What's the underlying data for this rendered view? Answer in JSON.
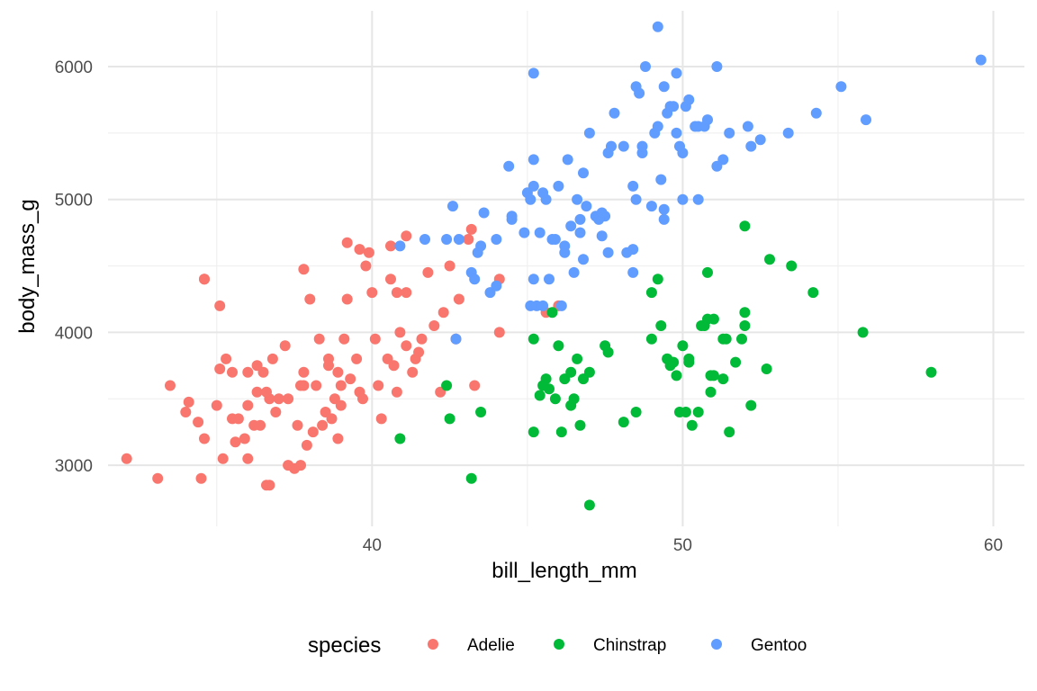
{
  "chart_data": {
    "type": "scatter",
    "xlabel": "bill_length_mm",
    "ylabel": "body_mass_g",
    "xlim": [
      31.5,
      61.0
    ],
    "ylim": [
      2540,
      6420
    ],
    "x_ticks": [
      40,
      50,
      60
    ],
    "y_ticks": [
      3000,
      4000,
      5000,
      6000
    ],
    "x_tick_labels": [
      "40",
      "50",
      "60"
    ],
    "y_tick_labels": [
      "3000",
      "4000",
      "5000",
      "6000"
    ],
    "grid": true,
    "legend": {
      "title": "species",
      "position": "bottom"
    },
    "series": [
      {
        "name": "Adelie",
        "color": "#F8766D",
        "points": [
          [
            32.1,
            3050
          ],
          [
            33.1,
            2900
          ],
          [
            33.5,
            3600
          ],
          [
            34.0,
            3400
          ],
          [
            34.1,
            3475
          ],
          [
            34.4,
            3325
          ],
          [
            34.5,
            2900
          ],
          [
            34.6,
            3200
          ],
          [
            34.6,
            4400
          ],
          [
            35.0,
            3450
          ],
          [
            35.1,
            3725
          ],
          [
            35.2,
            3050
          ],
          [
            35.3,
            3800
          ],
          [
            35.5,
            3700
          ],
          [
            35.5,
            3350
          ],
          [
            35.6,
            3175
          ],
          [
            35.7,
            3350
          ],
          [
            35.9,
            3200
          ],
          [
            36.0,
            3450
          ],
          [
            36.0,
            3700
          ],
          [
            36.0,
            3050
          ],
          [
            36.2,
            3300
          ],
          [
            36.3,
            3550
          ],
          [
            36.3,
            3750
          ],
          [
            36.4,
            3300
          ],
          [
            36.5,
            3700
          ],
          [
            36.6,
            2850
          ],
          [
            36.7,
            2850
          ],
          [
            36.7,
            3500
          ],
          [
            36.8,
            3800
          ],
          [
            36.9,
            3400
          ],
          [
            37.0,
            3500
          ],
          [
            37.2,
            3900
          ],
          [
            37.3,
            3000
          ],
          [
            37.5,
            2975
          ],
          [
            37.6,
            3300
          ],
          [
            37.7,
            3000
          ],
          [
            37.8,
            3700
          ],
          [
            37.8,
            3600
          ],
          [
            37.9,
            3150
          ],
          [
            38.1,
            3250
          ],
          [
            38.2,
            3600
          ],
          [
            38.3,
            3950
          ],
          [
            38.4,
            3300
          ],
          [
            38.5,
            3400
          ],
          [
            38.6,
            3800
          ],
          [
            38.7,
            3350
          ],
          [
            38.8,
            3500
          ],
          [
            38.9,
            3700
          ],
          [
            39.0,
            3600
          ],
          [
            39.1,
            3950
          ],
          [
            39.2,
            4250
          ],
          [
            39.3,
            3650
          ],
          [
            39.5,
            3800
          ],
          [
            39.6,
            3550
          ],
          [
            39.7,
            3500
          ],
          [
            39.8,
            4500
          ],
          [
            40.0,
            4300
          ],
          [
            40.2,
            3600
          ],
          [
            40.3,
            3350
          ],
          [
            40.5,
            3800
          ],
          [
            40.6,
            4400
          ],
          [
            40.7,
            3750
          ],
          [
            40.8,
            4300
          ],
          [
            40.9,
            4000
          ],
          [
            41.1,
            3900
          ],
          [
            41.3,
            3700
          ],
          [
            41.4,
            3800
          ],
          [
            41.5,
            3850
          ],
          [
            41.6,
            3950
          ],
          [
            41.8,
            4450
          ],
          [
            42.0,
            4050
          ],
          [
            42.2,
            3550
          ],
          [
            42.3,
            4150
          ],
          [
            42.5,
            4500
          ],
          [
            42.7,
            3950
          ],
          [
            42.8,
            4250
          ],
          [
            43.1,
            4700
          ],
          [
            43.2,
            4775
          ],
          [
            43.3,
            3600
          ],
          [
            44.1,
            4400
          ],
          [
            44.1,
            4000
          ],
          [
            45.6,
            4150
          ],
          [
            46.0,
            4200
          ],
          [
            34.6,
            4400
          ],
          [
            35.1,
            4200
          ],
          [
            37.8,
            4475
          ],
          [
            38.0,
            4250
          ],
          [
            39.2,
            4675
          ],
          [
            39.6,
            4625
          ],
          [
            39.9,
            4600
          ],
          [
            40.6,
            4650
          ],
          [
            41.1,
            4725
          ],
          [
            41.1,
            4300
          ],
          [
            37.7,
            3600
          ],
          [
            38.6,
            3750
          ],
          [
            39.0,
            3450
          ],
          [
            40.1,
            3950
          ],
          [
            36.6,
            3550
          ],
          [
            37.3,
            3500
          ],
          [
            38.9,
            3200
          ],
          [
            40.8,
            3550
          ]
        ]
      },
      {
        "name": "Chinstrap",
        "color": "#00BA38",
        "points": [
          [
            40.9,
            3200
          ],
          [
            42.4,
            3600
          ],
          [
            42.5,
            3350
          ],
          [
            43.2,
            2900
          ],
          [
            43.5,
            3400
          ],
          [
            45.2,
            3250
          ],
          [
            45.2,
            3950
          ],
          [
            45.4,
            3525
          ],
          [
            45.5,
            3600
          ],
          [
            45.6,
            3650
          ],
          [
            45.7,
            3575
          ],
          [
            45.9,
            3500
          ],
          [
            46.1,
            3250
          ],
          [
            46.2,
            3650
          ],
          [
            46.4,
            3700
          ],
          [
            46.4,
            3450
          ],
          [
            46.5,
            3500
          ],
          [
            46.6,
            3800
          ],
          [
            46.7,
            3300
          ],
          [
            46.8,
            3650
          ],
          [
            47.0,
            3700
          ],
          [
            47.0,
            2700
          ],
          [
            47.5,
            3900
          ],
          [
            47.6,
            3850
          ],
          [
            48.1,
            3325
          ],
          [
            48.5,
            3400
          ],
          [
            49.0,
            3950
          ],
          [
            49.0,
            4300
          ],
          [
            49.2,
            4400
          ],
          [
            49.3,
            4050
          ],
          [
            49.5,
            3800
          ],
          [
            49.6,
            3750
          ],
          [
            49.7,
            3775
          ],
          [
            49.8,
            3675
          ],
          [
            50.0,
            3900
          ],
          [
            50.1,
            3400
          ],
          [
            50.2,
            3775
          ],
          [
            50.3,
            3300
          ],
          [
            50.5,
            3400
          ],
          [
            50.6,
            4050
          ],
          [
            50.7,
            4050
          ],
          [
            50.8,
            4100
          ],
          [
            50.9,
            3550
          ],
          [
            51.0,
            4100
          ],
          [
            51.3,
            3950
          ],
          [
            51.4,
            3950
          ],
          [
            51.5,
            3250
          ],
          [
            51.7,
            3775
          ],
          [
            51.9,
            3950
          ],
          [
            52.0,
            4800
          ],
          [
            52.0,
            4150
          ],
          [
            52.2,
            3450
          ],
          [
            52.7,
            3725
          ],
          [
            52.8,
            4550
          ],
          [
            53.5,
            4500
          ],
          [
            54.2,
            4300
          ],
          [
            55.8,
            4000
          ],
          [
            58.0,
            3700
          ],
          [
            50.8,
            4450
          ],
          [
            49.5,
            3800
          ],
          [
            51.0,
            3675
          ],
          [
            50.9,
            3675
          ],
          [
            52.0,
            4050
          ],
          [
            45.8,
            4150
          ],
          [
            50.2,
            3800
          ],
          [
            49.9,
            3400
          ],
          [
            46.0,
            3900
          ],
          [
            51.3,
            3650
          ]
        ]
      },
      {
        "name": "Gentoo",
        "color": "#619CFF",
        "points": [
          [
            40.9,
            4650
          ],
          [
            41.7,
            4700
          ],
          [
            42.6,
            4950
          ],
          [
            42.7,
            3950
          ],
          [
            42.8,
            4700
          ],
          [
            43.2,
            4450
          ],
          [
            43.3,
            4400
          ],
          [
            43.4,
            4600
          ],
          [
            43.5,
            4650
          ],
          [
            43.6,
            4900
          ],
          [
            43.8,
            4300
          ],
          [
            44.0,
            4350
          ],
          [
            44.4,
            5250
          ],
          [
            44.5,
            4850
          ],
          [
            44.9,
            4750
          ],
          [
            45.0,
            5050
          ],
          [
            45.1,
            5000
          ],
          [
            45.2,
            4400
          ],
          [
            45.2,
            5300
          ],
          [
            45.3,
            4200
          ],
          [
            45.4,
            4750
          ],
          [
            45.5,
            4200
          ],
          [
            45.6,
            5000
          ],
          [
            45.7,
            4400
          ],
          [
            45.8,
            4700
          ],
          [
            46.1,
            4200
          ],
          [
            46.2,
            4650
          ],
          [
            46.3,
            5300
          ],
          [
            46.4,
            4800
          ],
          [
            46.5,
            4450
          ],
          [
            46.6,
            5000
          ],
          [
            46.7,
            4750
          ],
          [
            46.8,
            5200
          ],
          [
            46.9,
            4950
          ],
          [
            47.0,
            5500
          ],
          [
            47.2,
            4875
          ],
          [
            47.3,
            4875
          ],
          [
            47.4,
            4725
          ],
          [
            47.5,
            4875
          ],
          [
            47.6,
            5350
          ],
          [
            47.7,
            5400
          ],
          [
            47.8,
            5650
          ],
          [
            48.1,
            5400
          ],
          [
            48.2,
            4600
          ],
          [
            48.4,
            4625
          ],
          [
            48.5,
            5850
          ],
          [
            48.6,
            5800
          ],
          [
            48.7,
            5350
          ],
          [
            48.8,
            6000
          ],
          [
            49.1,
            5500
          ],
          [
            49.2,
            5550
          ],
          [
            49.3,
            5150
          ],
          [
            49.4,
            5850
          ],
          [
            49.5,
            5650
          ],
          [
            49.6,
            5700
          ],
          [
            49.7,
            5700
          ],
          [
            49.8,
            5950
          ],
          [
            49.9,
            5400
          ],
          [
            50.0,
            5000
          ],
          [
            50.1,
            5700
          ],
          [
            50.2,
            5750
          ],
          [
            50.4,
            5550
          ],
          [
            50.5,
            5550
          ],
          [
            50.7,
            5550
          ],
          [
            50.8,
            5600
          ],
          [
            51.1,
            6000
          ],
          [
            51.3,
            5300
          ],
          [
            51.5,
            5500
          ],
          [
            52.1,
            5550
          ],
          [
            52.2,
            5400
          ],
          [
            52.5,
            5450
          ],
          [
            53.4,
            5500
          ],
          [
            54.3,
            5650
          ],
          [
            55.1,
            5850
          ],
          [
            55.9,
            5600
          ],
          [
            59.6,
            6050
          ],
          [
            49.2,
            6300
          ],
          [
            45.2,
            5950
          ],
          [
            49.0,
            4950
          ],
          [
            49.4,
            4925
          ],
          [
            48.4,
            4450
          ],
          [
            46.2,
            4600
          ],
          [
            45.1,
            4200
          ],
          [
            45.5,
            5050
          ],
          [
            47.3,
            4850
          ],
          [
            44.5,
            4875
          ],
          [
            42.4,
            4700
          ],
          [
            49.8,
            5500
          ],
          [
            50.0,
            5350
          ],
          [
            50.5,
            5000
          ],
          [
            51.1,
            5250
          ],
          [
            48.5,
            5000
          ],
          [
            48.4,
            5100
          ],
          [
            48.7,
            5400
          ],
          [
            46.0,
            5100
          ],
          [
            45.2,
            5100
          ],
          [
            47.4,
            4900
          ],
          [
            49.4,
            4850
          ],
          [
            46.7,
            4850
          ],
          [
            47.6,
            4600
          ],
          [
            44.0,
            4700
          ],
          [
            46.8,
            4550
          ],
          [
            45.9,
            4700
          ]
        ]
      }
    ]
  }
}
